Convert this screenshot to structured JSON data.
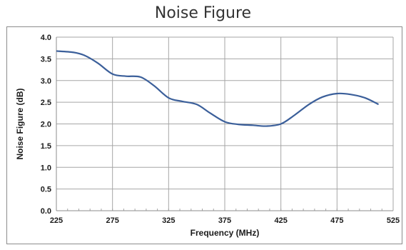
{
  "chart_data": {
    "type": "line",
    "title": "Noise Figure",
    "xlabel": "Frequency (MHz)",
    "ylabel": "Noise Figure (dB)",
    "xlim": [
      225,
      525
    ],
    "ylim": [
      0.0,
      4.0
    ],
    "x_ticks": [
      225,
      275,
      325,
      375,
      425,
      475,
      525
    ],
    "x_tick_labels": [
      "225",
      "275",
      "325",
      "375",
      "425",
      "475",
      "525"
    ],
    "y_ticks": [
      0.0,
      0.5,
      1.0,
      1.5,
      2.0,
      2.5,
      3.0,
      3.5,
      4.0
    ],
    "y_tick_labels": [
      "0.0",
      "0.5",
      "1.0",
      "1.5",
      "2.0",
      "2.5",
      "3.0",
      "3.5",
      "4.0"
    ],
    "grid": true,
    "series": [
      {
        "color": "#3b5f9a",
        "x": [
          225,
          240,
          250,
          262,
          275,
          287,
          300,
          312,
          325,
          337,
          350,
          362,
          375,
          387,
          400,
          412,
          425,
          437,
          450,
          462,
          475,
          487,
          500,
          512
        ],
        "y": [
          3.68,
          3.65,
          3.58,
          3.4,
          3.15,
          3.1,
          3.08,
          2.88,
          2.6,
          2.52,
          2.45,
          2.25,
          2.05,
          1.99,
          1.97,
          1.95,
          2.0,
          2.2,
          2.45,
          2.62,
          2.7,
          2.68,
          2.6,
          2.45
        ]
      }
    ]
  }
}
